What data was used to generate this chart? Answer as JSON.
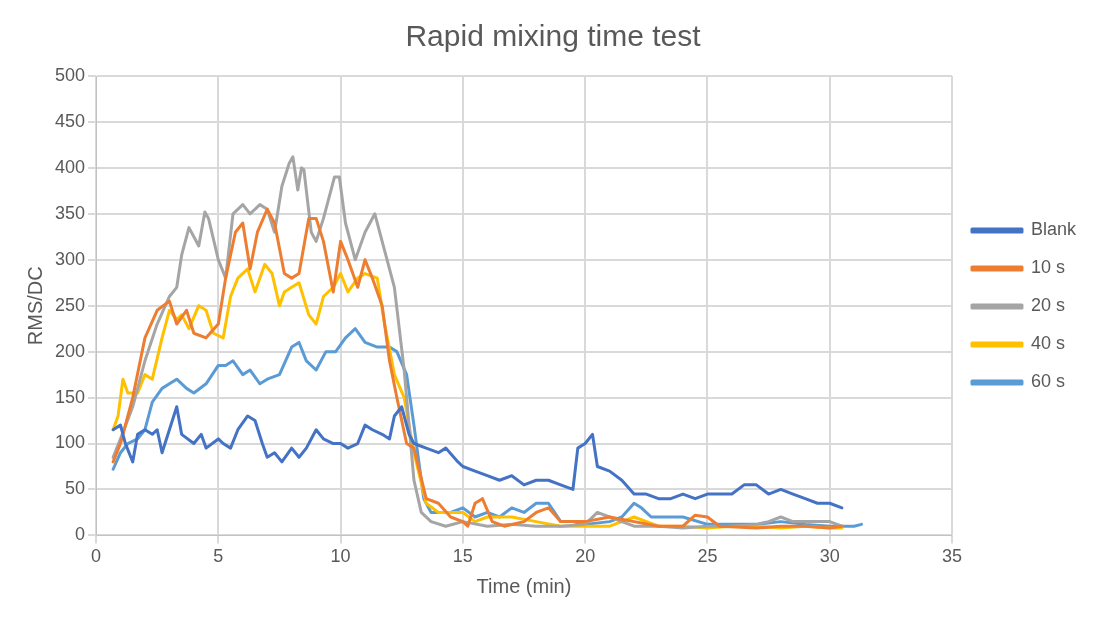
{
  "chart_data": {
    "type": "line",
    "title": "Rapid mixing time test",
    "xlabel": "Time (min)",
    "ylabel": "RMS/DC",
    "xlim": [
      0,
      35
    ],
    "xticks": [
      0,
      5,
      10,
      15,
      20,
      25,
      30,
      35
    ],
    "ylim": [
      0,
      500
    ],
    "yticks": [
      0,
      50,
      100,
      150,
      200,
      250,
      300,
      350,
      400,
      450,
      500
    ],
    "grid": true,
    "legend": "right",
    "marker": "none",
    "line_style": "solid",
    "series": [
      {
        "name": "Blank",
        "color": "#4472c4",
        "x": [
          0.7,
          1.0,
          1.2,
          1.5,
          1.7,
          2.0,
          2.3,
          2.5,
          2.7,
          3.0,
          3.3,
          3.5,
          4.0,
          4.3,
          4.5,
          5.0,
          5.2,
          5.5,
          5.8,
          6.2,
          6.5,
          6.8,
          7.0,
          7.3,
          7.6,
          8.0,
          8.3,
          8.6,
          9.0,
          9.3,
          9.7,
          10.0,
          10.3,
          10.7,
          11.0,
          11.3,
          11.7,
          12.0,
          12.2,
          12.5,
          12.8,
          13.0,
          13.5,
          14.0,
          14.3,
          14.8,
          15.0,
          15.5,
          16.0,
          16.5,
          17.0,
          17.5,
          18.0,
          18.5,
          19.0,
          19.5,
          19.7,
          20.0,
          20.3,
          20.5,
          21.0,
          21.5,
          22.0,
          22.5,
          23.0,
          23.5,
          24.0,
          24.5,
          25.0,
          25.5,
          26.0,
          26.5,
          27.0,
          27.5,
          28.0,
          28.5,
          29.0,
          29.5,
          30.0,
          30.5
        ],
        "values": [
          115,
          120,
          100,
          80,
          110,
          115,
          110,
          115,
          90,
          115,
          140,
          110,
          100,
          110,
          95,
          105,
          100,
          95,
          115,
          130,
          125,
          100,
          85,
          90,
          80,
          95,
          85,
          95,
          115,
          105,
          100,
          100,
          95,
          100,
          120,
          115,
          110,
          105,
          130,
          140,
          110,
          100,
          95,
          90,
          95,
          80,
          75,
          70,
          65,
          60,
          65,
          55,
          60,
          60,
          55,
          50,
          95,
          100,
          110,
          75,
          70,
          60,
          45,
          45,
          40,
          40,
          45,
          40,
          45,
          45,
          45,
          55,
          55,
          45,
          50,
          45,
          40,
          35,
          35,
          30
        ]
      },
      {
        "name": "10 s",
        "color": "#ed7d31",
        "x": [
          0.7,
          1.0,
          1.5,
          2.0,
          2.5,
          3.0,
          3.3,
          3.7,
          4.0,
          4.5,
          5.0,
          5.3,
          5.7,
          6.0,
          6.3,
          6.6,
          7.0,
          7.3,
          7.7,
          8.0,
          8.3,
          8.7,
          9.0,
          9.3,
          9.7,
          10.0,
          10.3,
          10.7,
          11.0,
          11.3,
          11.7,
          12.0,
          12.3,
          12.7,
          13.0,
          13.5,
          14.0,
          14.5,
          15.0,
          15.2,
          15.5,
          15.8,
          16.2,
          16.7,
          17.5,
          18.0,
          18.5,
          19.0,
          20.0,
          21.0,
          22.0,
          23.0,
          24.0,
          24.5,
          25.0,
          25.5,
          27.0,
          28.0,
          29.0,
          30.0,
          30.5
        ],
        "values": [
          80,
          100,
          150,
          215,
          245,
          255,
          230,
          245,
          220,
          215,
          230,
          280,
          330,
          340,
          290,
          330,
          355,
          340,
          285,
          280,
          285,
          345,
          345,
          320,
          265,
          320,
          300,
          270,
          300,
          280,
          250,
          190,
          150,
          100,
          95,
          40,
          35,
          20,
          15,
          10,
          35,
          40,
          15,
          10,
          15,
          25,
          30,
          15,
          15,
          20,
          15,
          10,
          10,
          22,
          20,
          10,
          8,
          10,
          10,
          8,
          10
        ]
      },
      {
        "name": "20 s",
        "color": "#a5a5a5",
        "x": [
          0.7,
          1.0,
          1.5,
          2.0,
          2.5,
          3.0,
          3.3,
          3.5,
          3.8,
          4.0,
          4.2,
          4.45,
          4.6,
          5.0,
          5.3,
          5.6,
          6.0,
          6.3,
          6.7,
          7.0,
          7.3,
          7.6,
          7.9,
          8.05,
          8.25,
          8.4,
          8.5,
          8.8,
          9.0,
          9.3,
          9.6,
          9.75,
          9.95,
          10.2,
          10.6,
          11.0,
          11.4,
          11.8,
          12.2,
          12.6,
          13.0,
          13.3,
          13.7,
          14.3,
          15.0,
          16.0,
          17.0,
          18.0,
          19.0,
          20.0,
          20.5,
          21.0,
          22.0,
          23.0,
          24.0,
          25.0,
          26.0,
          27.0,
          27.5,
          28.0,
          28.5,
          29.0,
          30.0,
          30.5
        ],
        "values": [
          85,
          105,
          140,
          190,
          230,
          260,
          270,
          305,
          335,
          325,
          315,
          352,
          345,
          300,
          280,
          350,
          360,
          350,
          360,
          355,
          330,
          380,
          405,
          412,
          376,
          400,
          398,
          330,
          320,
          345,
          375,
          390,
          390,
          340,
          300,
          330,
          350,
          310,
          270,
          180,
          60,
          25,
          15,
          10,
          15,
          10,
          12,
          10,
          10,
          12,
          25,
          20,
          10,
          10,
          8,
          10,
          10,
          12,
          15,
          20,
          15,
          15,
          15,
          10
        ]
      },
      {
        "name": "40 s",
        "color": "#ffc000",
        "x": [
          0.7,
          0.9,
          1.1,
          1.3,
          1.7,
          2.0,
          2.3,
          2.7,
          3.0,
          3.3,
          3.5,
          3.8,
          4.2,
          4.5,
          4.8,
          5.2,
          5.5,
          5.8,
          6.2,
          6.5,
          6.9,
          7.2,
          7.5,
          7.7,
          8.0,
          8.3,
          8.7,
          9.0,
          9.3,
          9.7,
          10.0,
          10.3,
          10.7,
          11.0,
          11.5,
          11.8,
          12.2,
          12.6,
          13.0,
          13.5,
          14.0,
          15.0,
          15.5,
          16.0,
          17.0,
          18.0,
          19.0,
          20.0,
          21.0,
          21.5,
          22.0,
          23.0,
          24.0,
          25.0,
          26.0,
          27.0,
          28.0,
          29.0,
          30.0,
          30.5
        ],
        "values": [
          115,
          130,
          170,
          155,
          155,
          175,
          170,
          215,
          245,
          235,
          240,
          225,
          250,
          245,
          220,
          215,
          260,
          280,
          290,
          265,
          295,
          285,
          250,
          265,
          270,
          275,
          240,
          230,
          260,
          270,
          285,
          265,
          280,
          285,
          280,
          230,
          175,
          150,
          90,
          35,
          25,
          25,
          15,
          20,
          20,
          15,
          10,
          10,
          10,
          15,
          20,
          10,
          10,
          8,
          10,
          10,
          8,
          10,
          8,
          8
        ]
      },
      {
        "name": "60 s",
        "color": "#5b9bd5",
        "x": [
          0.7,
          1.0,
          1.3,
          1.7,
          2.0,
          2.3,
          2.7,
          3.0,
          3.3,
          3.7,
          4.0,
          4.5,
          5.0,
          5.3,
          5.6,
          6.0,
          6.3,
          6.7,
          7.0,
          7.5,
          8.0,
          8.3,
          8.6,
          9.0,
          9.4,
          9.8,
          10.2,
          10.6,
          11.0,
          11.5,
          12.0,
          12.3,
          12.7,
          13.0,
          13.4,
          13.7,
          14.5,
          15.0,
          15.5,
          16.0,
          16.5,
          17.0,
          17.5,
          18.0,
          18.5,
          19.0,
          19.5,
          20.0,
          21.0,
          21.5,
          22.0,
          22.3,
          22.7,
          23.5,
          24.0,
          25.0,
          26.0,
          27.0,
          28.0,
          29.0,
          30.0,
          31.0,
          31.3
        ],
        "values": [
          72,
          90,
          100,
          105,
          115,
          145,
          160,
          165,
          170,
          160,
          155,
          165,
          185,
          185,
          190,
          175,
          180,
          165,
          170,
          175,
          205,
          210,
          190,
          180,
          200,
          200,
          215,
          225,
          210,
          205,
          205,
          200,
          175,
          120,
          40,
          25,
          25,
          30,
          20,
          25,
          20,
          30,
          25,
          35,
          35,
          15,
          15,
          12,
          15,
          20,
          35,
          30,
          20,
          20,
          20,
          12,
          12,
          12,
          15,
          12,
          10,
          10,
          12
        ]
      }
    ]
  }
}
